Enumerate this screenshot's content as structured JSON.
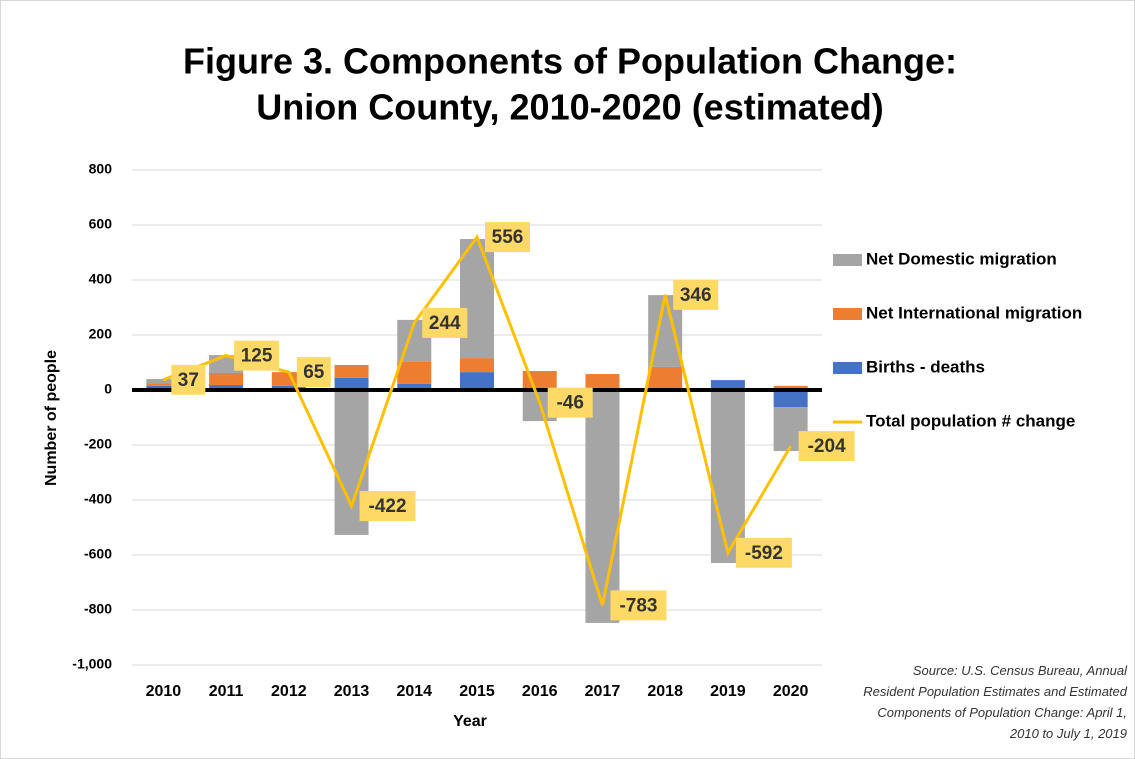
{
  "chart_data": {
    "type": "bar",
    "title": [
      "Figure 3. Components of Population Change:",
      "Union County, 2010-2020 (estimated)"
    ],
    "xlabel": "Year",
    "ylabel": "Number of people",
    "categories": [
      "2010",
      "2011",
      "2012",
      "2013",
      "2014",
      "2015",
      "2016",
      "2017",
      "2018",
      "2019",
      "2020"
    ],
    "series": [
      {
        "name": "Net Domestic migration",
        "color": "#a5a5a5",
        "type": "bar",
        "values": [
          15,
          65,
          0,
          -527,
          153,
          433,
          -113,
          -847,
          261,
          -629,
          -160
        ]
      },
      {
        "name": "Net International migration",
        "color": "#ed7d31",
        "type": "bar",
        "values": [
          10,
          44,
          50,
          47,
          80,
          51,
          69,
          58,
          79,
          0,
          15
        ]
      },
      {
        "name": "Births - deaths",
        "color": "#4472c4",
        "type": "bar",
        "values": [
          15,
          18,
          15,
          44,
          22,
          65,
          0,
          0,
          5,
          36,
          -62
        ]
      },
      {
        "name": "Total population # change",
        "color": "#ffc000",
        "type": "line",
        "values": [
          37,
          125,
          65,
          -422,
          244,
          556,
          -46,
          -783,
          346,
          -592,
          -204
        ]
      }
    ],
    "ylim": [
      -1000,
      800
    ],
    "yticks": [
      {
        "value": -1000,
        "label": "-1,000"
      },
      -800,
      -600,
      -400,
      -200,
      0,
      200,
      400,
      600,
      800
    ],
    "grid": true,
    "legend": "right",
    "source": "Source: U.S. Census Bureau, Annual Resident Population Estimates and Estimated Components of Population Change: April 1, 2010 to July 1, 2019"
  }
}
